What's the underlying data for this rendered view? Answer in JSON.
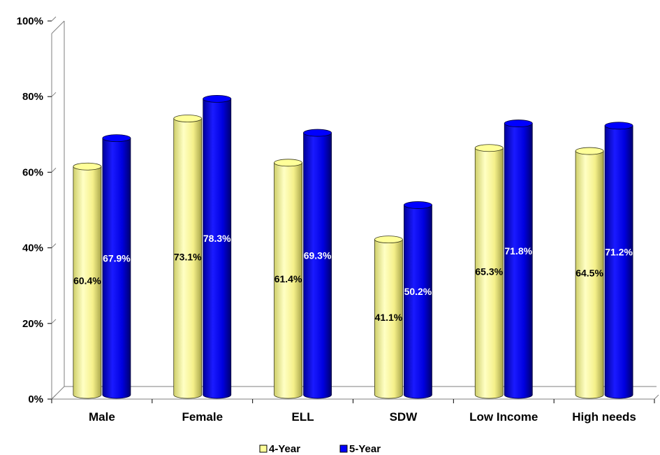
{
  "chart_data": {
    "type": "bar",
    "categories": [
      "Male",
      "Female",
      "ELL",
      "SDW",
      "Low Income",
      "High needs"
    ],
    "series": [
      {
        "name": "4-Year",
        "values": [
          60.4,
          73.1,
          61.4,
          41.1,
          65.3,
          64.5
        ],
        "labels": [
          "60.4%",
          "73.1%",
          "61.4%",
          "41.1%",
          "65.3%",
          "64.5%"
        ],
        "color": "#FFFF99",
        "label_color": "#000000"
      },
      {
        "name": "5-Year",
        "values": [
          67.9,
          78.3,
          69.3,
          50.2,
          71.8,
          71.2
        ],
        "labels": [
          "67.9%",
          "78.3%",
          "69.3%",
          "50.2%",
          "71.8%",
          "71.2%"
        ],
        "color": "#0000FF",
        "label_color": "#FFFFFF"
      }
    ],
    "y_ticks": [
      "0%",
      "20%",
      "40%",
      "60%",
      "80%",
      "100%"
    ],
    "ylim": [
      0,
      100
    ],
    "title": "",
    "xlabel": "",
    "ylabel": "",
    "grid": false,
    "legend": "bottom",
    "style": "3d-cylinder"
  }
}
